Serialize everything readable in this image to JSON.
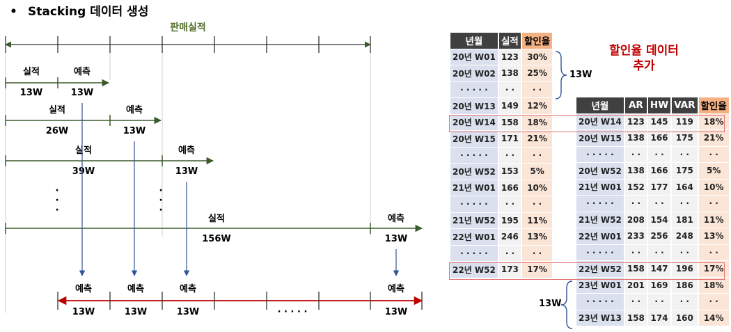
{
  "title": {
    "bullet": "•",
    "text": "Stacking 데이터 생성"
  },
  "note": {
    "line1": "할인율 데이터",
    "line2": "추가"
  },
  "timeline": {
    "header": "판매실적",
    "rows": [
      {
        "actual": "실적",
        "actual_len": "13W",
        "forecast": "예측",
        "forecast_len": "13W"
      },
      {
        "actual": "실적",
        "actual_len": "26W",
        "forecast": "예측",
        "forecast_len": "13W"
      },
      {
        "actual": "실적",
        "actual_len": "39W",
        "forecast": "예측",
        "forecast_len": "13W"
      },
      {
        "actual": "실적",
        "actual_len": "156W",
        "forecast": "예측",
        "forecast_len": "13W"
      }
    ],
    "ellipsis_dot": "·",
    "bottom": {
      "labels": [
        "예측",
        "예측",
        "예측",
        "예측"
      ],
      "lengths": [
        "13W",
        "13W",
        "13W",
        "13W"
      ],
      "gap": "· · · · ·"
    }
  },
  "table1": {
    "headers": [
      "년월",
      "실적",
      "할인율"
    ],
    "rows": [
      [
        "20년 W01",
        "123",
        "30%"
      ],
      [
        "20년 W02",
        "138",
        "25%"
      ],
      [
        "· · · · ·",
        "· ·",
        "· ·"
      ],
      [
        "20년 W13",
        "149",
        "12%"
      ],
      [
        "20년 W14",
        "158",
        "18%"
      ],
      [
        "20년 W15",
        "171",
        "21%"
      ],
      [
        "· · · · ·",
        "· ·",
        "· ·"
      ],
      [
        "20년 W52",
        "153",
        "5%"
      ],
      [
        "21년 W01",
        "166",
        "10%"
      ],
      [
        "· · · · ·",
        "· ·",
        "· ·"
      ],
      [
        "21년 W52",
        "195",
        "11%"
      ],
      [
        "22년 W01",
        "246",
        "13%"
      ],
      [
        "· · · · ·",
        "· ·",
        "· ·"
      ],
      [
        "22년 W52",
        "173",
        "17%"
      ]
    ],
    "brace_label": "13W"
  },
  "table2": {
    "headers": [
      "년월",
      "AR",
      "HW",
      "VAR",
      "할인율"
    ],
    "rows": [
      [
        "20년 W14",
        "123",
        "145",
        "119",
        "18%"
      ],
      [
        "20년 W15",
        "138",
        "166",
        "175",
        "21%"
      ],
      [
        "· · · · ·",
        "· ·",
        "· ·",
        "· ·",
        "· ·"
      ],
      [
        "20년 W52",
        "138",
        "166",
        "175",
        "5%"
      ],
      [
        "21년 W01",
        "152",
        "177",
        "164",
        "10%"
      ],
      [
        "· · · · ·",
        "· ·",
        "· ·",
        "· ·",
        "· ·"
      ],
      [
        "21년 W52",
        "208",
        "154",
        "181",
        "11%"
      ],
      [
        "22년 W01",
        "233",
        "256",
        "248",
        "13%"
      ],
      [
        "· · · · ·",
        "· ·",
        "· ·",
        "· ·",
        "· ·"
      ],
      [
        "22년 W52",
        "158",
        "147",
        "196",
        "17%"
      ],
      [
        "23년 W01",
        "201",
        "169",
        "186",
        "18%"
      ],
      [
        "· · · · ·",
        "· ·",
        "· ·",
        "· ·",
        "· ·"
      ],
      [
        "23년 W13",
        "158",
        "174",
        "160",
        "14%"
      ]
    ],
    "brace_label": "13W"
  },
  "colors": {
    "actual_line": "#3a5a2a",
    "forecast_line": "#3a5a2a",
    "header_text": "#4f6e2a",
    "bottom_line": "#c00000",
    "down_arrow": "#2f5597",
    "table_header": "#404040",
    "discount_header": "#f4b183",
    "discount_cell": "#fbe5d6",
    "label_cell": "#dae0ee",
    "value_cell": "#f2f2f2",
    "highlight_box": "#e57373",
    "note_text": "#c00000"
  }
}
